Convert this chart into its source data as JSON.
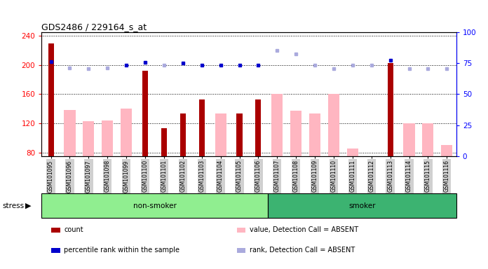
{
  "title": "GDS2486 / 229164_s_at",
  "samples": [
    "GSM101095",
    "GSM101096",
    "GSM101097",
    "GSM101098",
    "GSM101099",
    "GSM101100",
    "GSM101101",
    "GSM101102",
    "GSM101103",
    "GSM101104",
    "GSM101105",
    "GSM101106",
    "GSM101107",
    "GSM101108",
    "GSM101109",
    "GSM101110",
    "GSM101111",
    "GSM101112",
    "GSM101113",
    "GSM101114",
    "GSM101115",
    "GSM101116"
  ],
  "count_values": [
    230,
    null,
    null,
    null,
    null,
    192,
    113,
    133,
    153,
    null,
    133,
    153,
    null,
    null,
    null,
    null,
    null,
    null,
    203,
    null,
    null,
    null
  ],
  "pink_values": [
    null,
    138,
    123,
    124,
    140,
    null,
    null,
    null,
    null,
    133,
    null,
    null,
    160,
    137,
    133,
    160,
    85,
    null,
    null,
    120,
    120,
    90
  ],
  "blue_rank": [
    205,
    null,
    null,
    null,
    200,
    204,
    null,
    203,
    200,
    200,
    200,
    200,
    null,
    null,
    null,
    null,
    null,
    null,
    207,
    null,
    null,
    null
  ],
  "lavender_rank": [
    null,
    196,
    195,
    196,
    null,
    null,
    200,
    null,
    null,
    null,
    null,
    null,
    220,
    215,
    200,
    195,
    200,
    200,
    null,
    195,
    195,
    195
  ],
  "group_colors": [
    "#90ee90",
    "#3cb371"
  ],
  "ylim_left": [
    75,
    245
  ],
  "ylim_right": [
    0,
    100
  ],
  "yticks_left": [
    80,
    120,
    160,
    200,
    240
  ],
  "yticks_right": [
    0,
    25,
    50,
    75,
    100
  ],
  "legend_items": [
    {
      "label": "count",
      "color": "#aa0000"
    },
    {
      "label": "percentile rank within the sample",
      "color": "#0000cc"
    },
    {
      "label": "value, Detection Call = ABSENT",
      "color": "#ffb6c1"
    },
    {
      "label": "rank, Detection Call = ABSENT",
      "color": "#aaaadd"
    }
  ],
  "bar_color_count": "#aa0000",
  "bar_color_pink": "#ffb6c1",
  "dot_color_blue": "#0000cc",
  "dot_color_lavender": "#aaaadd",
  "pink_bar_width": 0.6,
  "red_bar_width": 0.3
}
